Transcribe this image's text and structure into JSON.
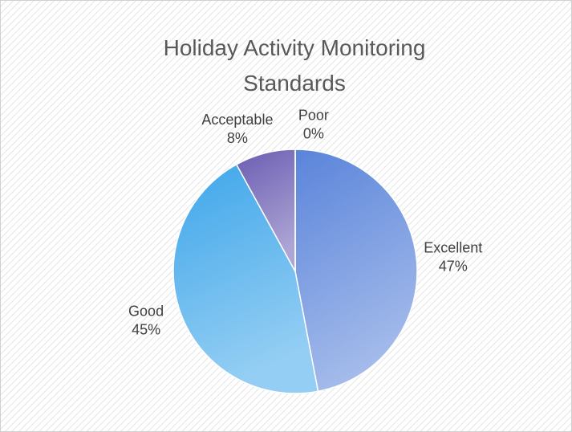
{
  "chart_data": {
    "type": "pie",
    "title": "Holiday Activity Monitoring Standards",
    "categories": [
      "Excellent",
      "Good",
      "Acceptable",
      "Poor"
    ],
    "values": [
      47,
      45,
      8,
      0
    ],
    "value_labels": [
      "47%",
      "45%",
      "8%",
      "0%"
    ],
    "colors": [
      "#5a84da",
      "#3ea6ea",
      "#6a5db2",
      "#4a7bc8"
    ]
  }
}
